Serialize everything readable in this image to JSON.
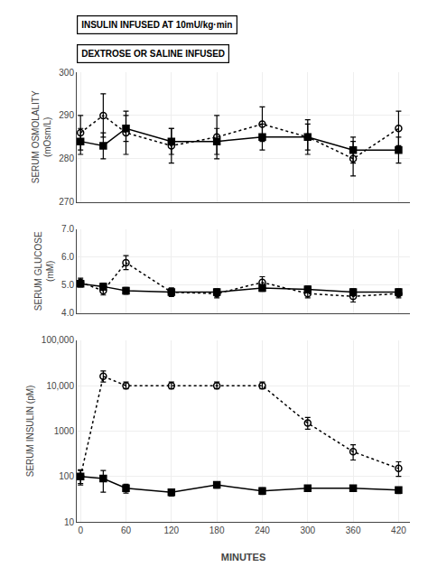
{
  "chart_data": [
    {
      "type": "line",
      "ylabel": "SERUM OSMOLALITY\n(mOsm/L)",
      "annotations": [
        {
          "text": "INSULIN INFUSED AT 10mU/kg·min"
        },
        {
          "text": "DEXTROSE OR SALINE INFUSED"
        }
      ],
      "x": [
        0,
        30,
        60,
        120,
        180,
        240,
        300,
        360,
        420
      ],
      "series": [
        {
          "color": "black",
          "marker": "circle-open",
          "line_style": "dotted",
          "values": [
            286,
            290,
            286,
            283,
            285,
            288,
            285,
            280,
            287
          ],
          "error": [
            4,
            5,
            5,
            4,
            5,
            4,
            4,
            4,
            4
          ]
        },
        {
          "color": "black",
          "marker": "square",
          "line_style": "solid",
          "values": [
            284,
            283,
            287,
            284,
            284,
            285,
            285,
            282,
            282
          ],
          "error": [
            3,
            3,
            3,
            3,
            3,
            3,
            3,
            3,
            3
          ]
        }
      ],
      "xlim": [
        -5,
        435
      ],
      "xticks": [
        0,
        60,
        120,
        180,
        240,
        300,
        360,
        420
      ],
      "ylim": [
        270,
        300
      ],
      "yticks": [
        270,
        280,
        290,
        300
      ],
      "tick_labels": "y"
    },
    {
      "type": "line",
      "ylabel": "SERUM GLUCOSE\n(mM)",
      "x": [
        0,
        30,
        60,
        120,
        180,
        240,
        300,
        360,
        420
      ],
      "series": [
        {
          "color": "black",
          "marker": "circle-open",
          "line_style": "dotted",
          "values": [
            5.1,
            4.8,
            5.8,
            4.75,
            4.7,
            5.1,
            4.7,
            4.6,
            4.7
          ],
          "error": [
            0.15,
            0.15,
            0.25,
            0.15,
            0.15,
            0.2,
            0.15,
            0.2,
            0.15
          ]
        },
        {
          "color": "black",
          "marker": "square",
          "line_style": "solid",
          "values": [
            5.05,
            4.95,
            4.8,
            4.75,
            4.75,
            4.9,
            4.85,
            4.75,
            4.75
          ],
          "error": [
            0.12,
            0.12,
            0.12,
            0.12,
            0.12,
            0.12,
            0.12,
            0.12,
            0.12
          ]
        }
      ],
      "xlim": [
        -5,
        435
      ],
      "xticks": [
        0,
        60,
        120,
        180,
        240,
        300,
        360,
        420
      ],
      "ylim": [
        4.0,
        7.0
      ],
      "yticks": [
        {
          "value": 4.0,
          "label": "4.0"
        },
        {
          "value": 5.0,
          "label": "5.0"
        },
        {
          "value": 6.0,
          "label": "6.0"
        },
        {
          "value": 7.0,
          "label": "7.0"
        }
      ],
      "tick_labels": "y"
    },
    {
      "type": "line",
      "ylabel": "SERUM INSULIN (pM)",
      "xlabel": "MINUTES",
      "log": "y",
      "x": [
        0,
        30,
        60,
        120,
        180,
        240,
        300,
        360,
        420
      ],
      "series": [
        {
          "color": "black",
          "marker": "circle-open",
          "line_style": "dotted",
          "values": [
            100,
            16000,
            10000,
            10000,
            10000,
            10000,
            1500,
            350,
            150
          ],
          "error_upper": [
            40,
            5000,
            2000,
            2000,
            2000,
            2000,
            500,
            150,
            60
          ],
          "error_lower": [
            30,
            4000,
            1500,
            1500,
            1500,
            1500,
            400,
            120,
            50
          ]
        },
        {
          "color": "black",
          "marker": "square",
          "line_style": "solid",
          "values": [
            100,
            90,
            55,
            45,
            65,
            48,
            55,
            55,
            50
          ],
          "error": [
            35,
            45,
            12,
            8,
            10,
            8,
            8,
            8,
            8
          ]
        }
      ],
      "xlim": [
        -5,
        435
      ],
      "xticks": [
        0,
        60,
        120,
        180,
        240,
        300,
        360,
        420
      ],
      "ylim": [
        10,
        100000
      ],
      "yticks": [
        10,
        100,
        1000,
        {
          "value": 10000,
          "label": "10,000"
        },
        {
          "value": 100000,
          "label": "100,000"
        }
      ]
    }
  ]
}
